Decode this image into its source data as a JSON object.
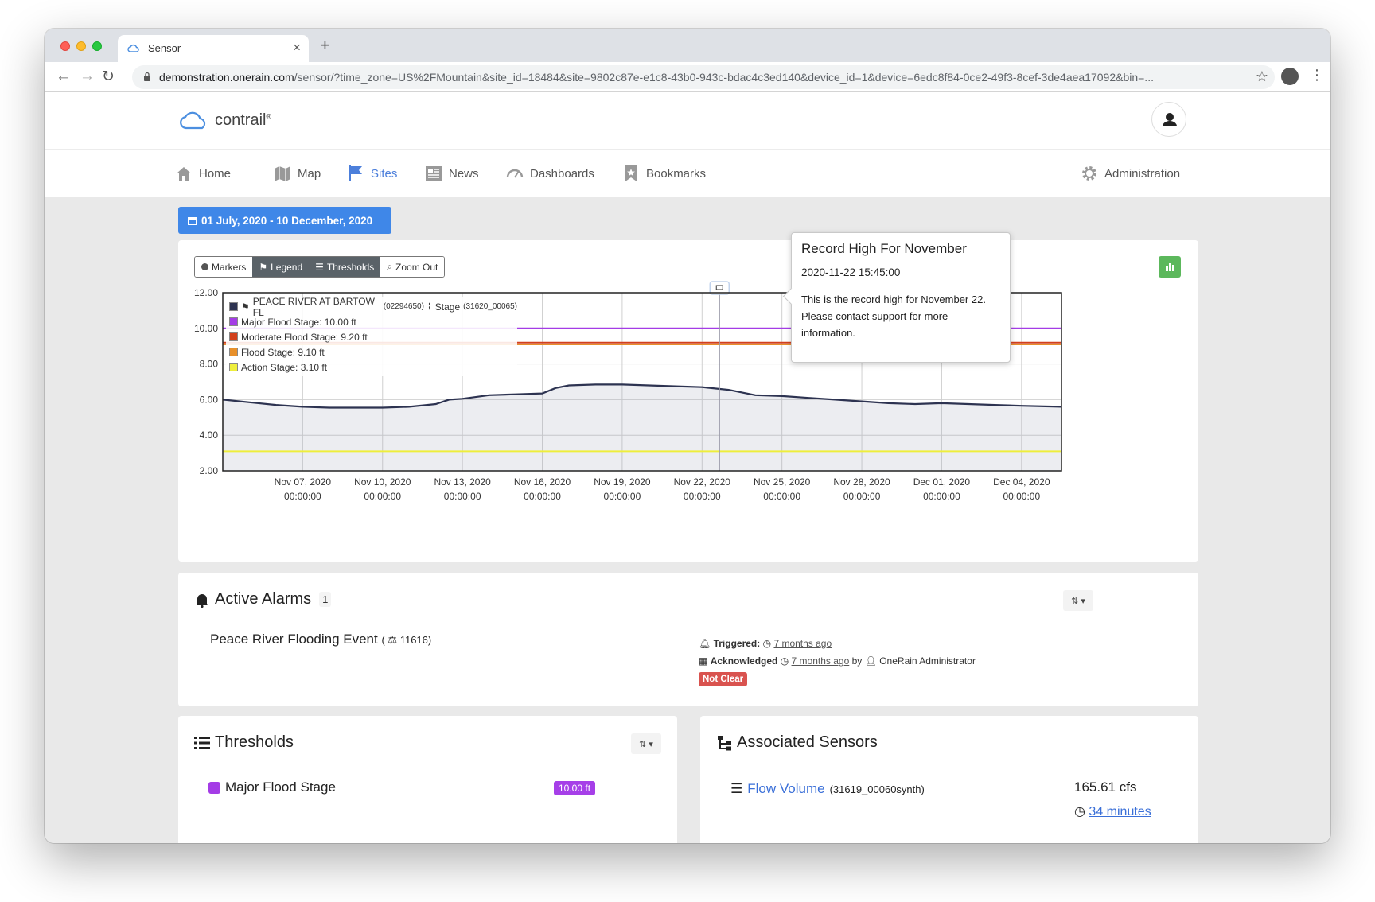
{
  "browser": {
    "tab_title": "Sensor",
    "url_domain": "demonstration.onerain.com",
    "url_path": "/sensor/?time_zone=US%2FMountain&site_id=18484&site=9802c87e-e1c8-43b0-943c-bdac4c3ed140&device_id=1&device=6edc8f84-0ce2-49f3-8cef-3de4aea17092&bin=..."
  },
  "header": {
    "logo_text": "contrail",
    "logo_mark": "®"
  },
  "nav": {
    "items": [
      {
        "label": "Home",
        "icon": "home-icon"
      },
      {
        "label": "Map",
        "icon": "map-icon"
      },
      {
        "label": "Sites",
        "icon": "flag-icon",
        "active": true
      },
      {
        "label": "News",
        "icon": "newspaper-icon"
      },
      {
        "label": "Dashboards",
        "icon": "gauge-icon"
      },
      {
        "label": "Bookmarks",
        "icon": "bookmark-icon"
      }
    ],
    "admin_label": "Administration"
  },
  "date_range": "01 July, 2020 - 10 December, 2020",
  "chart_controls": {
    "markers": "Markers",
    "legend": "Legend",
    "thresholds": "Thresholds",
    "zoom_out": "Zoom Out"
  },
  "legend": {
    "site": "PEACE RIVER AT BARTOW FL",
    "site_id": "(02294650)",
    "sensor": "Stage",
    "sensor_id": "(31620_00065)",
    "thresholds": [
      "Major Flood Stage: 10.00 ft",
      "Moderate Flood Stage: 9.20 ft",
      "Flood Stage: 9.10 ft",
      "Action Stage: 3.10 ft"
    ]
  },
  "tooltip": {
    "title": "Record High For November",
    "date": "2020-11-22 15:45:00",
    "body": "This is the record high for November 22. Please contact support for more information."
  },
  "chart_data": {
    "type": "line",
    "y_ticks": [
      "12.00",
      "10.00",
      "8.00",
      "6.00",
      "4.00",
      "2.00"
    ],
    "ylim": [
      2,
      12
    ],
    "x_ticks": [
      [
        "Nov 07, 2020",
        "00:00:00"
      ],
      [
        "Nov 10, 2020",
        "00:00:00"
      ],
      [
        "Nov 13, 2020",
        "00:00:00"
      ],
      [
        "Nov 16, 2020",
        "00:00:00"
      ],
      [
        "Nov 19, 2020",
        "00:00:00"
      ],
      [
        "Nov 22, 2020",
        "00:00:00"
      ],
      [
        "Nov 25, 2020",
        "00:00:00"
      ],
      [
        "Nov 28, 2020",
        "00:00:00"
      ],
      [
        "Dec 01, 2020",
        "00:00:00"
      ],
      [
        "Dec 04, 2020",
        "00:00:00"
      ]
    ],
    "xlim": [
      "2020-11-04",
      "2020-12-05 12:00"
    ],
    "series": [
      {
        "name": "Stage",
        "color": "#2d3351",
        "x": [
          "2020-11-04",
          "2020-11-05",
          "2020-11-06",
          "2020-11-07",
          "2020-11-08",
          "2020-11-09",
          "2020-11-10",
          "2020-11-11",
          "2020-11-12",
          "2020-11-12 12:00",
          "2020-11-13",
          "2020-11-14",
          "2020-11-15",
          "2020-11-16",
          "2020-11-16 12:00",
          "2020-11-17",
          "2020-11-18",
          "2020-11-19",
          "2020-11-20",
          "2020-11-21",
          "2020-11-22",
          "2020-11-23",
          "2020-11-24",
          "2020-11-25",
          "2020-11-26",
          "2020-11-27",
          "2020-11-28",
          "2020-11-29",
          "2020-11-30",
          "2020-12-01",
          "2020-12-02",
          "2020-12-03",
          "2020-12-04",
          "2020-12-05 12:00"
        ],
        "y": [
          6.0,
          5.85,
          5.7,
          5.6,
          5.55,
          5.55,
          5.55,
          5.6,
          5.75,
          6.0,
          6.05,
          6.25,
          6.3,
          6.35,
          6.65,
          6.8,
          6.85,
          6.85,
          6.8,
          6.75,
          6.7,
          6.55,
          6.25,
          6.2,
          6.1,
          6.0,
          5.9,
          5.8,
          5.75,
          5.8,
          5.75,
          5.7,
          5.65,
          5.6
        ]
      }
    ],
    "thresholds": [
      {
        "name": "Major Flood Stage",
        "value": 10.0,
        "color": "#a43ce6"
      },
      {
        "name": "Moderate Flood Stage",
        "value": 9.2,
        "color": "#d2401c"
      },
      {
        "name": "Flood Stage",
        "value": 9.1,
        "color": "#e8902a"
      },
      {
        "name": "Action Stage",
        "value": 3.1,
        "color": "#eeee3c"
      }
    ],
    "marker": {
      "x": "2020-11-22 15:45"
    },
    "grid": true
  },
  "alarms": {
    "title": "Active Alarms",
    "count": "1",
    "item": {
      "name": "Peace River Flooding Event",
      "id": "11616",
      "triggered_label": "Triggered:",
      "triggered_ago": "7 months ago",
      "ack_label": "Acknowledged",
      "ack_ago": "7 months ago",
      "ack_by_prefix": "by",
      "ack_by": "OneRain Administrator",
      "status": "Not Clear"
    }
  },
  "thresholds_card": {
    "title": "Thresholds",
    "row_name": "Major Flood Stage",
    "row_value": "10.00 ft"
  },
  "assoc_card": {
    "title": "Associated Sensors",
    "sensor_name": "Flow Volume",
    "sensor_id": "(31619_00060synth)",
    "value": "165.61 cfs",
    "age": "34 minutes"
  }
}
